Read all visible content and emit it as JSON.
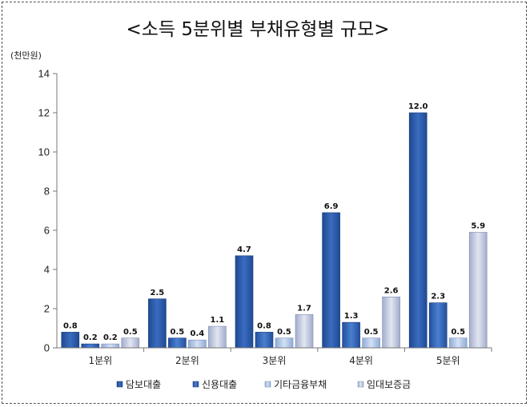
{
  "chart_data": {
    "type": "bar",
    "title": "<소득 5분위별 부채유형별 규모>",
    "unit": "(천만원)",
    "categories": [
      "1분위",
      "2분위",
      "3분위",
      "4분위",
      "5분위"
    ],
    "ylim": [
      0,
      14
    ],
    "yticks": [
      "0",
      "2",
      "4",
      "6",
      "8",
      "10",
      "12",
      "14"
    ],
    "grid": false,
    "legend_position": "bottom",
    "series": [
      {
        "name": "담보대출",
        "values": [
          0.8,
          2.5,
          4.7,
          6.9,
          12.0
        ],
        "labels": [
          "0.8",
          "2.5",
          "4.7",
          "6.9",
          "12.0"
        ],
        "color": "#2a5aa6"
      },
      {
        "name": "신용대출",
        "values": [
          0.2,
          0.5,
          0.8,
          1.3,
          2.3
        ],
        "labels": [
          "0.2",
          "0.5",
          "0.8",
          "1.3",
          "2.3"
        ],
        "color": "#3466b8"
      },
      {
        "name": "기타금융부채",
        "values": [
          0.2,
          0.4,
          0.5,
          0.5,
          0.5
        ],
        "labels": [
          "0.2",
          "0.4",
          "0.5",
          "0.5",
          "0.5"
        ],
        "color": "#a9c2e6"
      },
      {
        "name": "임대보증금",
        "values": [
          0.5,
          1.1,
          1.7,
          2.6,
          5.9
        ],
        "labels": [
          "0.5",
          "1.1",
          "1.7",
          "2.6",
          "5.9"
        ],
        "color": "#c4cbe0"
      }
    ]
  }
}
